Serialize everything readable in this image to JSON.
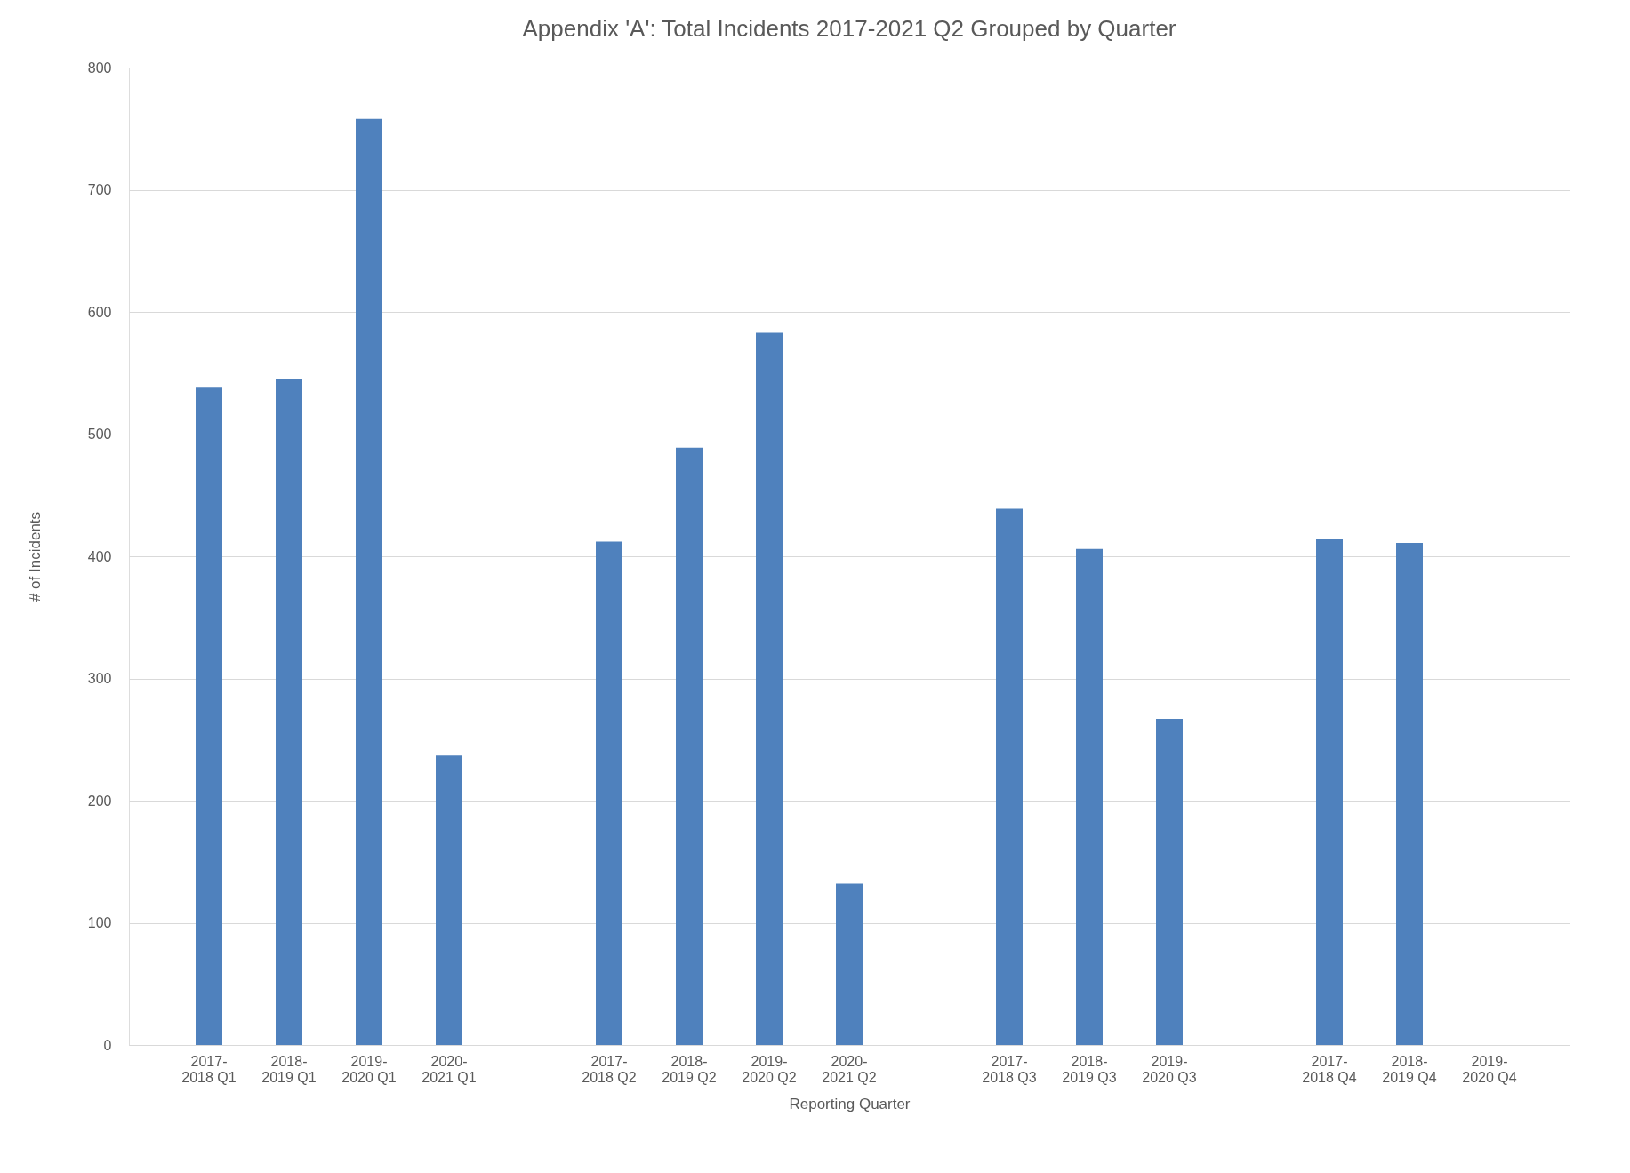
{
  "chart_data": {
    "type": "bar",
    "title": "Appendix 'A': Total Incidents 2017-2021 Q2 Grouped by Quarter",
    "xlabel": "Reporting Quarter",
    "ylabel": "# of Incidents",
    "categories": [
      "2017-2018 Q1",
      "2018-2019 Q1",
      "2019-2020 Q1",
      "2020-2021 Q1",
      null,
      "2017-2018 Q2",
      "2018-2019 Q2",
      "2019-2020 Q2",
      "2020-2021 Q2",
      null,
      "2017-2018 Q3",
      "2018-2019 Q3",
      "2019-2020 Q3",
      null,
      "2017-2018 Q4",
      "2018-2019 Q4",
      "2019-2020 Q4"
    ],
    "values": [
      538,
      545,
      758,
      237,
      null,
      412,
      489,
      583,
      132,
      null,
      439,
      406,
      267,
      null,
      414,
      411,
      null
    ],
    "color": "#4f81bd",
    "ylim": [
      0,
      800
    ],
    "yticks": [
      0,
      100,
      200,
      300,
      400,
      500,
      600,
      700,
      800
    ],
    "grid": "y"
  }
}
